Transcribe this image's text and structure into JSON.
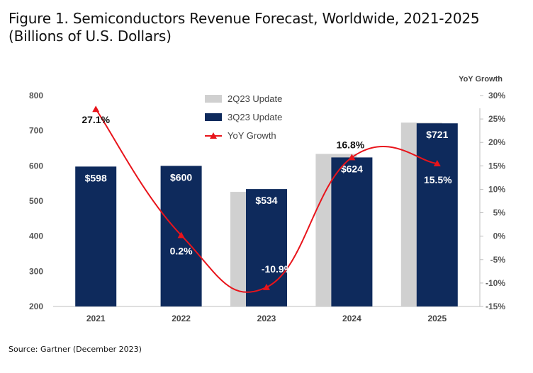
{
  "figure": {
    "title_line1": "Figure 1. Semiconductors Revenue Forecast, Worldwide, 2021-2025",
    "title_line2": "(Billions of U.S. Dollars)",
    "source": "Source: Gartner (December 2023)"
  },
  "chart_data": {
    "type": "bar",
    "categories": [
      "2021",
      "2022",
      "2023",
      "2024",
      "2025"
    ],
    "series": [
      {
        "name": "2Q23 Update",
        "type": "bar",
        "color": "#d0d0d0",
        "values": [
          null,
          null,
          526,
          634,
          723
        ]
      },
      {
        "name": "3Q23 Update",
        "type": "bar",
        "color": "#0e2a5c",
        "values": [
          598,
          600,
          534,
          624,
          721
        ],
        "labels": [
          "$598",
          "$600",
          "$534",
          "$624",
          "$721"
        ]
      },
      {
        "name": "YoY Growth",
        "type": "line",
        "axis": "right",
        "color": "#e8141b",
        "values": [
          27.1,
          0.2,
          -10.9,
          16.8,
          15.5
        ],
        "labels": [
          "27.1%",
          "0.2%",
          "-10.9%",
          "16.8%",
          "15.5%"
        ]
      }
    ],
    "left_axis": {
      "ylim": [
        200,
        800
      ],
      "ticks": [
        200,
        300,
        400,
        500,
        600,
        700,
        800
      ]
    },
    "right_axis": {
      "title": "YoY Growth",
      "ylim": [
        -15,
        30
      ],
      "ticks": [
        "-15%",
        "-10%",
        "-5%",
        "0%",
        "5%",
        "10%",
        "15%",
        "20%",
        "25%",
        "30%"
      ]
    },
    "legend": {
      "placement": "top-center",
      "entries": [
        "2Q23 Update",
        "3Q23 Update",
        "YoY Growth"
      ]
    },
    "grid": false
  }
}
